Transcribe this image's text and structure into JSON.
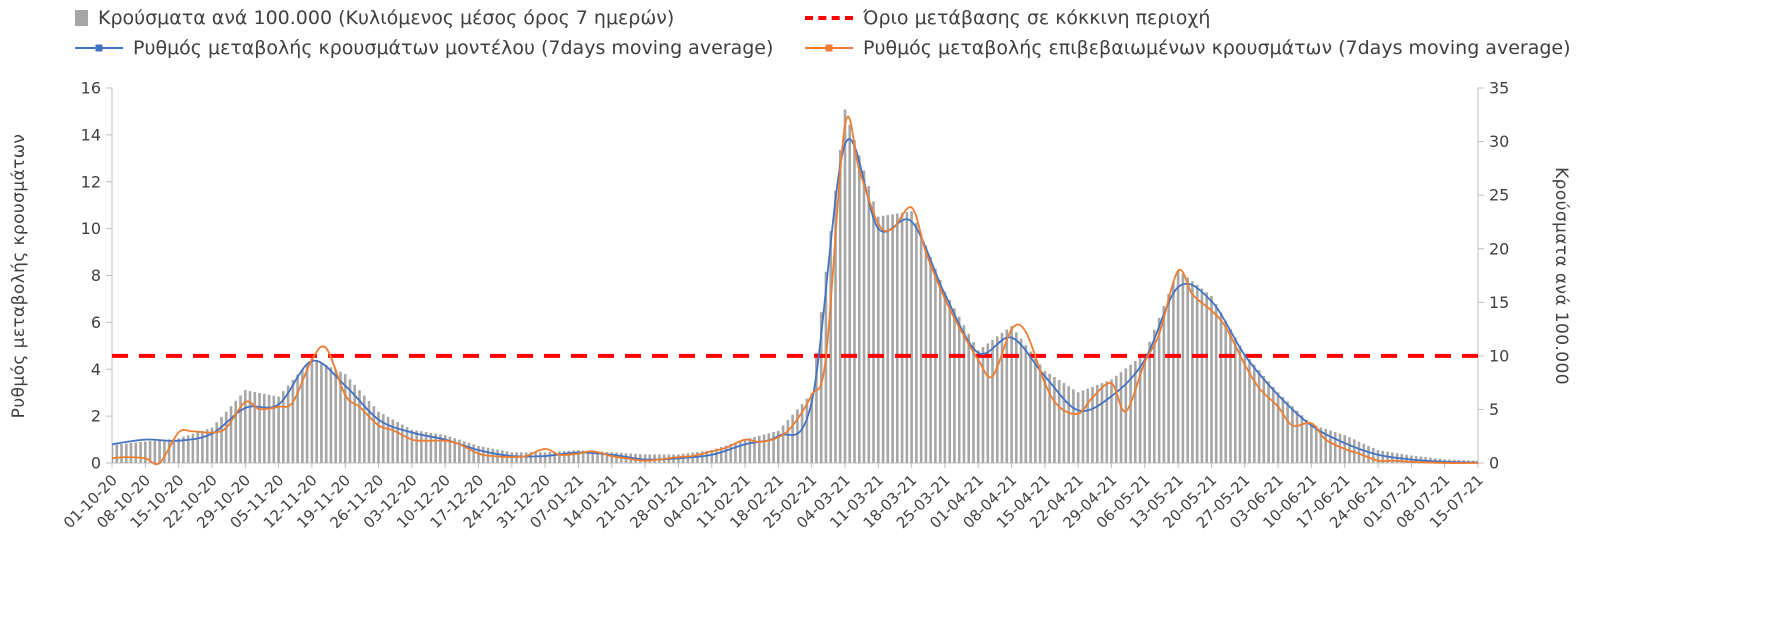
{
  "chart": {
    "legend": [
      {
        "label": "Κρούσματα ανά 100.000 (Κυλιόμενος μέσος όρος 7 ημερών)",
        "kind": "bar",
        "color": "#a6a6a6"
      },
      {
        "label": "Όριο μετάβασης σε κόκκινη περιοχή",
        "kind": "dash",
        "color": "#ff0000"
      },
      {
        "label": "Ρυθμός μεταβολής κρουσμάτων μοντέλου (7days moving average)",
        "kind": "line",
        "color": "#4472c4"
      },
      {
        "label": "Ρυθμός μεταβολής επιβεβαιωμένων κρουσμάτων (7days moving average)",
        "kind": "line",
        "color": "#ed7d31"
      }
    ],
    "left_axis": {
      "title": "Ρυθμός μεταβολής κρουσμάτων",
      "min": 0,
      "max": 16,
      "ticks": [
        "0",
        "2",
        "4",
        "6",
        "8",
        "10",
        "12",
        "14",
        "16"
      ]
    },
    "right_axis": {
      "title": "Κρούσματα ανά 100.000",
      "min": 0,
      "max": 35,
      "ticks": [
        "0",
        "5",
        "10",
        "15",
        "20",
        "25",
        "30",
        "35"
      ]
    },
    "colors": {
      "bars": "#a6a6a6",
      "model": "#4472c4",
      "confirmed": "#ed7d31",
      "threshold": "#ff0000",
      "axis": "#bfbfbf",
      "text": "#404040"
    }
  },
  "chart_data": {
    "type": "combo",
    "grid": false,
    "days_total": 287,
    "x_tick_labels": [
      "01-10-20",
      "08-10-20",
      "15-10-20",
      "22-10-20",
      "29-10-20",
      "05-11-20",
      "12-11-20",
      "19-11-20",
      "26-11-20",
      "03-12-20",
      "10-12-20",
      "17-12-20",
      "24-12-20",
      "31-12-20",
      "07-01-21",
      "14-01-21",
      "21-01-21",
      "28-01-21",
      "04-02-21",
      "11-02-21",
      "18-02-21",
      "25-02-21",
      "04-03-21",
      "11-03-21",
      "18-03-21",
      "25-03-21",
      "01-04-21",
      "08-04-21",
      "15-04-21",
      "22-04-21",
      "29-04-21",
      "06-05-21",
      "13-05-21",
      "20-05-21",
      "27-05-21",
      "03-06-21",
      "10-06-21",
      "17-06-21",
      "24-06-21",
      "01-07-21",
      "08-07-21",
      "15-07-21"
    ],
    "threshold": {
      "label": "Όριο μετάβασης σε κόκκινη περιοχή",
      "axis": "right",
      "value": 10
    },
    "series": [
      {
        "name": "Κρούσματα ανά 100.000 (Κυλιόμενος μέσος όρος 7 ημερών)",
        "type": "bar",
        "axis": "right",
        "x": [
          0,
          7,
          14,
          21,
          28,
          35,
          42,
          49,
          56,
          63,
          70,
          77,
          84,
          91,
          98,
          105,
          112,
          119,
          126,
          133,
          140,
          147,
          154,
          161,
          168,
          175,
          182,
          189,
          196,
          203,
          210,
          217,
          224,
          231,
          238,
          245,
          252,
          259,
          266,
          273,
          280,
          287
        ],
        "y": [
          1.7,
          2.0,
          2.3,
          3.3,
          6.8,
          6.2,
          9.8,
          8.3,
          4.8,
          3.1,
          2.6,
          1.6,
          1.0,
          1.0,
          1.2,
          1.0,
          0.8,
          0.8,
          1.2,
          2.2,
          3.0,
          6.5,
          33.0,
          23.0,
          23.5,
          16.0,
          10.5,
          12.8,
          8.6,
          6.6,
          7.8,
          10.2,
          18.0,
          15.6,
          10.2,
          6.6,
          3.6,
          2.6,
          1.2,
          0.7,
          0.35,
          0.2
        ]
      },
      {
        "name": "Ρυθμός μεταβολής κρουσμάτων μοντέλου (7days moving average)",
        "type": "line",
        "axis": "left",
        "x": [
          0,
          7,
          14,
          21,
          28,
          35,
          42,
          49,
          56,
          63,
          70,
          77,
          84,
          91,
          98,
          105,
          112,
          119,
          126,
          133,
          140,
          147,
          154,
          161,
          168,
          175,
          182,
          189,
          196,
          203,
          210,
          217,
          224,
          231,
          238,
          245,
          252,
          259,
          266,
          273,
          280,
          287
        ],
        "y": [
          0.8,
          1.0,
          0.95,
          1.25,
          2.35,
          2.5,
          4.35,
          3.3,
          1.85,
          1.3,
          1.0,
          0.55,
          0.3,
          0.3,
          0.45,
          0.35,
          0.15,
          0.2,
          0.35,
          0.8,
          1.15,
          2.6,
          13.6,
          10.0,
          10.3,
          7.2,
          4.7,
          5.35,
          3.7,
          2.25,
          2.85,
          4.4,
          7.5,
          6.9,
          4.6,
          2.9,
          1.6,
          0.85,
          0.35,
          0.15,
          0.05,
          0.02
        ]
      },
      {
        "name": "Ρυθμός μεταβολής επιβεβαιωμένων κρουσμάτων (7days moving average)",
        "type": "line",
        "axis": "left",
        "x": [
          0,
          3,
          7,
          10,
          14,
          17,
          21,
          24,
          28,
          31,
          35,
          38,
          42,
          45,
          49,
          52,
          56,
          59,
          63,
          66,
          70,
          73,
          77,
          80,
          84,
          87,
          91,
          94,
          98,
          101,
          105,
          108,
          112,
          115,
          119,
          122,
          126,
          129,
          133,
          136,
          140,
          143,
          147,
          150,
          154,
          157,
          161,
          164,
          168,
          171,
          175,
          178,
          182,
          185,
          189,
          192,
          196,
          199,
          203,
          206,
          210,
          213,
          217,
          220,
          224,
          227,
          231,
          234,
          238,
          241,
          245,
          248,
          252,
          255,
          259,
          262,
          266,
          269,
          273,
          280,
          287
        ],
        "y": [
          0.2,
          0.25,
          0.2,
          0.0,
          1.3,
          1.35,
          1.3,
          1.5,
          2.6,
          2.3,
          2.4,
          2.6,
          4.4,
          4.9,
          2.9,
          2.4,
          1.6,
          1.4,
          1.0,
          0.95,
          0.95,
          0.8,
          0.4,
          0.3,
          0.25,
          0.3,
          0.6,
          0.35,
          0.4,
          0.5,
          0.3,
          0.2,
          0.1,
          0.15,
          0.25,
          0.3,
          0.5,
          0.65,
          1.0,
          0.9,
          1.1,
          1.6,
          2.9,
          4.5,
          14.4,
          12.5,
          10.2,
          10.0,
          10.9,
          9.0,
          7.0,
          5.8,
          4.4,
          3.7,
          5.7,
          5.6,
          3.4,
          2.4,
          2.1,
          2.8,
          3.4,
          2.2,
          4.3,
          5.5,
          8.2,
          7.2,
          6.5,
          5.8,
          4.2,
          3.2,
          2.4,
          1.6,
          1.7,
          1.0,
          0.6,
          0.4,
          0.1,
          0.1,
          0.05,
          0.0,
          0.0
        ]
      }
    ]
  }
}
